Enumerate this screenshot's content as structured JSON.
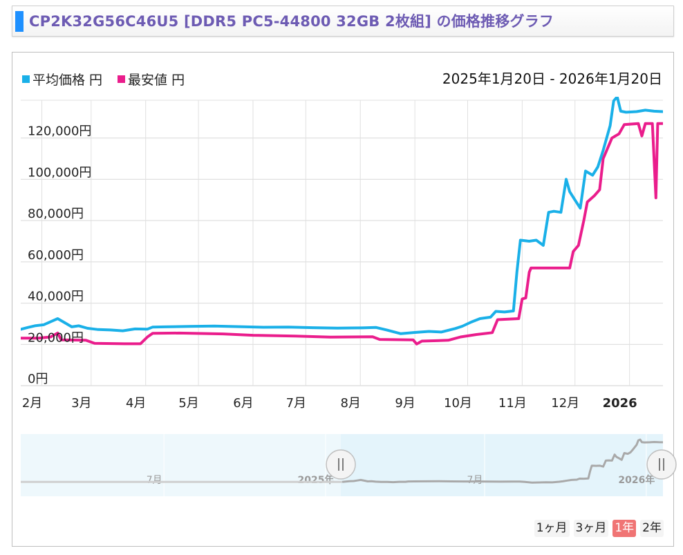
{
  "page": {
    "title": "CP2K32G56C46U5 [DDR5 PC5-44800 32GB 2枚組] の価格推移グラフ",
    "date_range": "2025年1月20日 - 2026年1月20日",
    "range_buttons": [
      {
        "label": "1ヶ月",
        "active": false
      },
      {
        "label": "3ヶ月",
        "active": false
      },
      {
        "label": "1年",
        "active": true
      },
      {
        "label": "2年",
        "active": false
      }
    ],
    "colors": {
      "average": "#1ab0e8",
      "lowest": "#ea1d8c",
      "navigator_line": "#a9a9a9",
      "navigator_fill": "#e4f4fb",
      "active_button": "#f07474"
    }
  },
  "chart_data": {
    "type": "line",
    "title": "",
    "xlabel": "",
    "ylabel": "",
    "ylim": [
      0,
      140000
    ],
    "xlim": [
      "2025-01-20",
      "2026-01-20"
    ],
    "grid": true,
    "legend_position": "top-left",
    "y_ticks": [
      {
        "value": 0,
        "label": "0円"
      },
      {
        "value": 20000,
        "label": "20,000円"
      },
      {
        "value": 40000,
        "label": "40,000円"
      },
      {
        "value": 60000,
        "label": "60,000円"
      },
      {
        "value": 80000,
        "label": "80,000円"
      },
      {
        "value": 100000,
        "label": "100,000円"
      },
      {
        "value": 120000,
        "label": "120,000円"
      }
    ],
    "x_ticks": [
      {
        "date": "2025-02-01",
        "label": "2月",
        "bold": false
      },
      {
        "date": "2025-03-01",
        "label": "3月",
        "bold": false
      },
      {
        "date": "2025-04-01",
        "label": "4月",
        "bold": false
      },
      {
        "date": "2025-05-01",
        "label": "5月",
        "bold": false
      },
      {
        "date": "2025-06-01",
        "label": "6月",
        "bold": false
      },
      {
        "date": "2025-07-01",
        "label": "7月",
        "bold": false
      },
      {
        "date": "2025-08-01",
        "label": "8月",
        "bold": false
      },
      {
        "date": "2025-09-01",
        "label": "9月",
        "bold": false
      },
      {
        "date": "2025-10-01",
        "label": "10月",
        "bold": false
      },
      {
        "date": "2025-11-01",
        "label": "11月",
        "bold": false
      },
      {
        "date": "2025-12-01",
        "label": "12月",
        "bold": false
      },
      {
        "date": "2026-01-01",
        "label": "2026",
        "bold": true
      }
    ],
    "series": [
      {
        "name": "平均価格 円",
        "color": "#1ab0e8",
        "points": [
          [
            "2025-01-20",
            27300
          ],
          [
            "2025-01-24",
            28200
          ],
          [
            "2025-01-28",
            29000
          ],
          [
            "2025-02-02",
            29500
          ],
          [
            "2025-02-06",
            31000
          ],
          [
            "2025-02-10",
            32500
          ],
          [
            "2025-02-14",
            30500
          ],
          [
            "2025-02-18",
            28500
          ],
          [
            "2025-02-22",
            29000
          ],
          [
            "2025-02-27",
            27800
          ],
          [
            "2025-03-05",
            27200
          ],
          [
            "2025-03-12",
            27000
          ],
          [
            "2025-03-19",
            26600
          ],
          [
            "2025-03-26",
            27500
          ],
          [
            "2025-04-02",
            27400
          ],
          [
            "2025-04-05",
            28400
          ],
          [
            "2025-04-12",
            28500
          ],
          [
            "2025-04-26",
            28700
          ],
          [
            "2025-05-10",
            28900
          ],
          [
            "2025-05-24",
            28600
          ],
          [
            "2025-06-07",
            28300
          ],
          [
            "2025-06-21",
            28400
          ],
          [
            "2025-07-05",
            28100
          ],
          [
            "2025-07-19",
            27900
          ],
          [
            "2025-08-02",
            28000
          ],
          [
            "2025-08-10",
            28200
          ],
          [
            "2025-08-16",
            27000
          ],
          [
            "2025-08-24",
            25200
          ],
          [
            "2025-09-01",
            25800
          ],
          [
            "2025-09-09",
            26300
          ],
          [
            "2025-09-16",
            26000
          ],
          [
            "2025-09-24",
            27700
          ],
          [
            "2025-09-28",
            28800
          ],
          [
            "2025-10-03",
            30800
          ],
          [
            "2025-10-08",
            32500
          ],
          [
            "2025-10-14",
            33200
          ],
          [
            "2025-10-17",
            36000
          ],
          [
            "2025-10-22",
            35700
          ],
          [
            "2025-10-27",
            36200
          ],
          [
            "2025-10-29",
            55000
          ],
          [
            "2025-10-31",
            70500
          ],
          [
            "2025-11-05",
            70000
          ],
          [
            "2025-11-09",
            70500
          ],
          [
            "2025-11-13",
            68000
          ],
          [
            "2025-11-16",
            84000
          ],
          [
            "2025-11-19",
            84500
          ],
          [
            "2025-11-23",
            84000
          ],
          [
            "2025-11-26",
            100000
          ],
          [
            "2025-11-28",
            94000
          ],
          [
            "2025-12-01",
            90000
          ],
          [
            "2025-12-04",
            86000
          ],
          [
            "2025-12-07",
            104000
          ],
          [
            "2025-12-11",
            102000
          ],
          [
            "2025-12-14",
            106000
          ],
          [
            "2025-12-17",
            114000
          ],
          [
            "2025-12-21",
            126000
          ],
          [
            "2025-12-23",
            138000
          ],
          [
            "2025-12-25",
            140000
          ],
          [
            "2025-12-27",
            133000
          ],
          [
            "2025-12-30",
            132500
          ],
          [
            "2026-01-05",
            132800
          ],
          [
            "2026-01-10",
            133500
          ],
          [
            "2026-01-15",
            133000
          ],
          [
            "2026-01-20",
            132800
          ]
        ]
      },
      {
        "name": "最安値 円",
        "color": "#ea1d8c",
        "points": [
          [
            "2025-01-20",
            23000
          ],
          [
            "2025-01-30",
            23000
          ],
          [
            "2025-02-06",
            23600
          ],
          [
            "2025-02-10",
            25500
          ],
          [
            "2025-02-12",
            22200
          ],
          [
            "2025-02-26",
            22000
          ],
          [
            "2025-03-03",
            20500
          ],
          [
            "2025-03-20",
            20300
          ],
          [
            "2025-03-29",
            20300
          ],
          [
            "2025-04-02",
            23600
          ],
          [
            "2025-04-05",
            25400
          ],
          [
            "2025-04-20",
            25500
          ],
          [
            "2025-05-15",
            25100
          ],
          [
            "2025-06-01",
            24400
          ],
          [
            "2025-06-25",
            24000
          ],
          [
            "2025-07-15",
            23500
          ],
          [
            "2025-08-08",
            23700
          ],
          [
            "2025-08-12",
            22400
          ],
          [
            "2025-08-31",
            22200
          ],
          [
            "2025-09-02",
            20200
          ],
          [
            "2025-09-05",
            21600
          ],
          [
            "2025-09-20",
            22000
          ],
          [
            "2025-09-27",
            23600
          ],
          [
            "2025-10-06",
            24800
          ],
          [
            "2025-10-15",
            25700
          ],
          [
            "2025-10-18",
            32000
          ],
          [
            "2025-10-30",
            32500
          ],
          [
            "2025-11-01",
            42000
          ],
          [
            "2025-11-03",
            42500
          ],
          [
            "2025-11-05",
            55000
          ],
          [
            "2025-11-06",
            57000
          ],
          [
            "2025-11-20",
            57000
          ],
          [
            "2025-11-28",
            57000
          ],
          [
            "2025-11-30",
            65000
          ],
          [
            "2025-12-03",
            68000
          ],
          [
            "2025-12-06",
            80000
          ],
          [
            "2025-12-08",
            89000
          ],
          [
            "2025-12-12",
            92000
          ],
          [
            "2025-12-15",
            95000
          ],
          [
            "2025-12-17",
            110000
          ],
          [
            "2025-12-22",
            120000
          ],
          [
            "2025-12-26",
            122000
          ],
          [
            "2025-12-29",
            126500
          ],
          [
            "2026-01-06",
            127000
          ],
          [
            "2026-01-08",
            121000
          ],
          [
            "2026-01-10",
            127000
          ],
          [
            "2026-01-14",
            127000
          ],
          [
            "2026-01-16",
            91000
          ],
          [
            "2026-01-17",
            127000
          ],
          [
            "2026-01-20",
            127000
          ]
        ]
      }
    ],
    "navigator": {
      "labels": [
        {
          "text": "7月",
          "bold": false
        },
        {
          "text": "2025年",
          "bold": true
        },
        {
          "text": "7月",
          "bold": false
        },
        {
          "text": "2026年",
          "bold": true
        }
      ]
    }
  }
}
